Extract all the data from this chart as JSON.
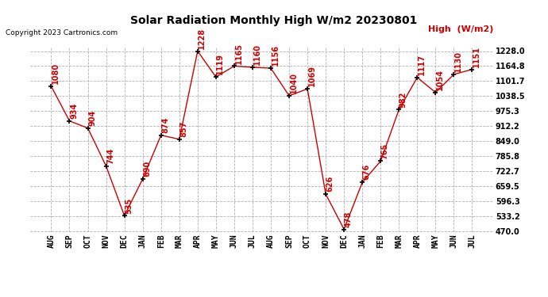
{
  "title": "Solar Radiation Monthly High W/m2 20230801",
  "copyright": "Copyright 2023 Cartronics.com",
  "legend_label": "High  (W/m2)",
  "months": [
    "AUG",
    "SEP",
    "OCT",
    "NOV",
    "DEC",
    "JAN",
    "FEB",
    "MAR",
    "APR",
    "MAY",
    "JUN",
    "JUL",
    "AUG",
    "SEP",
    "OCT",
    "NOV",
    "DEC",
    "JAN",
    "FEB",
    "MAR",
    "APR",
    "MAY",
    "JUN",
    "JUL"
  ],
  "values": [
    1080,
    934,
    904,
    744,
    535,
    690,
    874,
    857,
    1228,
    1119,
    1165,
    1160,
    1156,
    1040,
    1069,
    626,
    478,
    676,
    765,
    982,
    1117,
    1054,
    1130,
    1151
  ],
  "line_color": "#cc0000",
  "marker_color": "#000000",
  "bg_color": "#ffffff",
  "grid_color": "#b0b0b0",
  "ymin": 470.0,
  "ymax": 1228.0,
  "yticks": [
    470.0,
    533.2,
    596.3,
    659.5,
    722.7,
    785.8,
    849.0,
    912.2,
    975.3,
    1038.5,
    1101.7,
    1164.8,
    1228.0
  ],
  "title_fontsize": 10,
  "label_fontsize": 7,
  "annot_fontsize": 7,
  "copyright_fontsize": 6.5
}
